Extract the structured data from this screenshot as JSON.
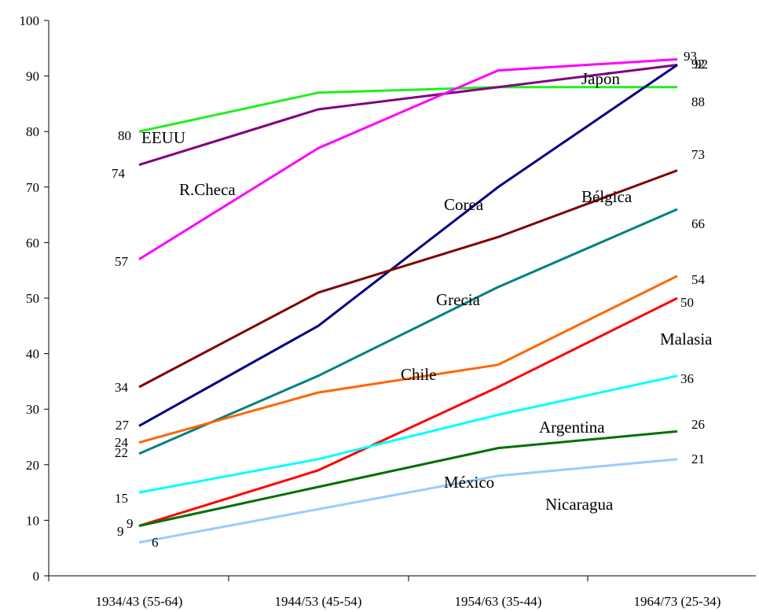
{
  "chart_data": {
    "type": "line",
    "categories": [
      "1934/43 (55-64)",
      "1944/53 (45-54)",
      "1954/63 (35-44)",
      "1964/73 (25-34)"
    ],
    "ylim": [
      0,
      100
    ],
    "yticks": [
      0,
      10,
      20,
      30,
      40,
      50,
      60,
      70,
      80,
      90,
      100
    ],
    "grid": false,
    "series": [
      {
        "name": "EEUU",
        "color": "#22ee22",
        "values": [
          80,
          87,
          88,
          88
        ],
        "start_label": "80",
        "end_label": "88"
      },
      {
        "name": "R.Checa",
        "color": "#800080",
        "values": [
          74,
          84,
          88,
          92
        ],
        "start_label": "74",
        "end_label": "92"
      },
      {
        "name": "Japón",
        "color": "#ff00ff",
        "values": [
          57,
          77,
          91,
          93
        ],
        "start_label": "57",
        "end_label": "93"
      },
      {
        "name": "Corea",
        "color": "#000080",
        "values": [
          27,
          45,
          70,
          92
        ],
        "start_label": "27",
        "end_label": "92"
      },
      {
        "name": "Bélgica",
        "color": "#800000",
        "values": [
          34,
          51,
          61,
          73
        ],
        "start_label": "34",
        "end_label": "73"
      },
      {
        "name": "Grecia",
        "color": "#008080",
        "values": [
          22,
          36,
          52,
          66
        ],
        "start_label": "22",
        "end_label": "66"
      },
      {
        "name": "Chile",
        "color": "#ff6600",
        "values": [
          24,
          33,
          38,
          54
        ],
        "start_label": "24",
        "end_label": "54"
      },
      {
        "name": "Malasia",
        "color": "#ff0000",
        "values": [
          9,
          19,
          34,
          50
        ],
        "start_label": "9",
        "end_label": "50"
      },
      {
        "name": "Argentina",
        "color": "#00ffff",
        "values": [
          15,
          21,
          29,
          36
        ],
        "start_label": "15",
        "end_label": "36"
      },
      {
        "name": "México",
        "color": "#007000",
        "values": [
          9,
          16,
          23,
          26
        ],
        "start_label": "9",
        "end_label": "26"
      },
      {
        "name": "Nicaragua",
        "color": "#99ccff",
        "values": [
          6,
          12,
          18,
          21
        ],
        "start_label": "6",
        "end_label": "21"
      }
    ]
  }
}
